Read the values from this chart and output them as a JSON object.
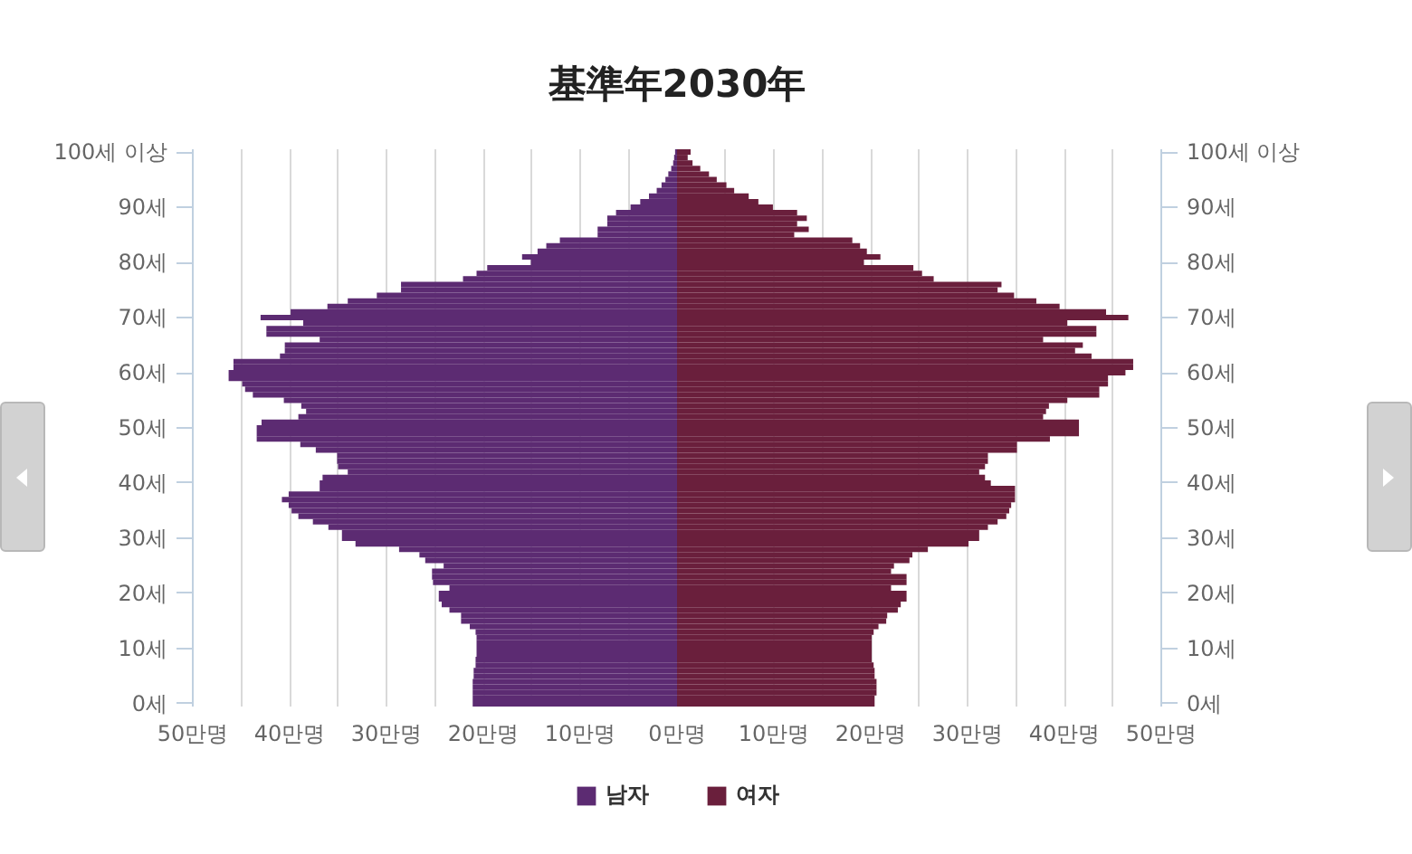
{
  "chart_data": {
    "type": "bar",
    "orientation": "horizontal",
    "stacked": true,
    "title": "基準年2030年",
    "categories": [
      "100세 이상",
      null,
      null,
      null,
      null,
      null,
      null,
      null,
      null,
      null,
      "90세",
      null,
      null,
      null,
      null,
      null,
      null,
      null,
      null,
      null,
      "80세",
      null,
      null,
      null,
      null,
      null,
      null,
      null,
      null,
      null,
      "70세",
      null,
      null,
      null,
      null,
      null,
      null,
      null,
      null,
      null,
      "60세",
      null,
      null,
      null,
      null,
      null,
      null,
      null,
      null,
      null,
      "50세",
      null,
      null,
      null,
      null,
      null,
      null,
      null,
      null,
      null,
      "40세",
      null,
      null,
      null,
      null,
      null,
      null,
      null,
      null,
      null,
      "30세",
      null,
      null,
      null,
      null,
      null,
      null,
      null,
      null,
      null,
      "20세",
      null,
      null,
      null,
      null,
      null,
      null,
      null,
      null,
      null,
      "10세",
      null,
      null,
      null,
      null,
      null,
      null,
      null,
      null,
      null,
      "0세"
    ],
    "series": [
      {
        "name": "남자",
        "color": "#5c2b72",
        "values": [
          -0.2,
          -0.3,
          -0.4,
          -0.6,
          -0.9,
          -1.2,
          -1.6,
          -2.1,
          -2.9,
          -3.8,
          -4.8,
          -6.3,
          -7.2,
          -7.2,
          -8.2,
          -8.2,
          -12.1,
          -13.5,
          -14.4,
          -16.0,
          -15.1,
          -19.6,
          -20.7,
          -22.1,
          -28.5,
          -28.5,
          -31.0,
          -34.0,
          -36.1,
          -39.9,
          -43.0,
          -38.6,
          -42.4,
          -42.4,
          -36.9,
          -40.5,
          -40.5,
          -41.0,
          -45.8,
          -45.8,
          -46.3,
          -46.3,
          -44.9,
          -44.6,
          -43.8,
          -40.6,
          -38.8,
          -38.3,
          -39.1,
          -42.9,
          -43.4,
          -43.4,
          -43.4,
          -38.9,
          -37.3,
          -35.1,
          -35.1,
          -35.0,
          -34.0,
          -36.6,
          -36.9,
          -36.9,
          -40.1,
          -40.8,
          -40.1,
          -39.8,
          -39.1,
          -37.6,
          -36.0,
          -34.6,
          -34.6,
          -33.2,
          -28.7,
          -26.6,
          -26.0,
          -24.1,
          -25.3,
          -25.3,
          -25.2,
          -23.5,
          -24.6,
          -24.6,
          -24.3,
          -23.5,
          -22.3,
          -22.3,
          -21.4,
          -20.8,
          -20.7,
          -20.7,
          -20.7,
          -20.7,
          -20.8,
          -20.8,
          -21.0,
          -21.0,
          -21.1,
          -21.1,
          -21.1,
          -21.1,
          -21.1
        ]
      },
      {
        "name": "여자",
        "color": "#6a1f3c",
        "values": [
          1.4,
          1.1,
          1.6,
          2.4,
          3.3,
          4.1,
          5.1,
          5.9,
          7.4,
          8.4,
          9.9,
          12.4,
          13.4,
          12.4,
          13.6,
          12.1,
          18.1,
          18.9,
          19.6,
          21.0,
          19.3,
          24.4,
          25.3,
          26.5,
          33.5,
          33.1,
          34.8,
          37.1,
          39.5,
          44.3,
          46.6,
          40.3,
          43.3,
          43.3,
          37.8,
          41.9,
          41.1,
          42.8,
          47.1,
          47.1,
          46.3,
          44.5,
          44.5,
          43.6,
          43.6,
          40.3,
          38.4,
          38.1,
          37.8,
          41.5,
          41.5,
          41.5,
          38.5,
          35.1,
          35.1,
          32.1,
          32.1,
          31.8,
          31.2,
          31.8,
          32.4,
          34.9,
          34.9,
          34.9,
          34.5,
          34.3,
          34.0,
          33.1,
          32.1,
          31.2,
          31.2,
          30.1,
          25.9,
          24.3,
          24.0,
          22.4,
          22.1,
          23.7,
          23.7,
          22.1,
          23.7,
          23.7,
          23.1,
          22.8,
          21.7,
          21.6,
          20.8,
          20.3,
          20.1,
          20.1,
          20.1,
          20.1,
          20.1,
          20.3,
          20.4,
          20.4,
          20.6,
          20.6,
          20.6,
          20.4,
          20.4
        ]
      }
    ],
    "xlim": [
      -50,
      50
    ],
    "xticks": [
      {
        "value": -50,
        "label": "50만명"
      },
      {
        "value": -45,
        "label": null
      },
      {
        "value": -40,
        "label": "40만명"
      },
      {
        "value": -35,
        "label": null
      },
      {
        "value": -30,
        "label": "30만명"
      },
      {
        "value": -25,
        "label": null
      },
      {
        "value": -20,
        "label": "20만명"
      },
      {
        "value": -15,
        "label": null
      },
      {
        "value": -10,
        "label": "10만명"
      },
      {
        "value": -5,
        "label": null
      },
      {
        "value": 0,
        "label": "0만명"
      },
      {
        "value": 5,
        "label": null
      },
      {
        "value": 10,
        "label": "10만명"
      },
      {
        "value": 15,
        "label": null
      },
      {
        "value": 20,
        "label": "20만명"
      },
      {
        "value": 25,
        "label": null
      },
      {
        "value": 30,
        "label": "30만명"
      },
      {
        "value": 35,
        "label": null
      },
      {
        "value": 40,
        "label": "40만명"
      },
      {
        "value": 45,
        "label": null
      },
      {
        "value": 50,
        "label": "50만명"
      }
    ],
    "grid": "x",
    "legend": "bottom"
  }
}
